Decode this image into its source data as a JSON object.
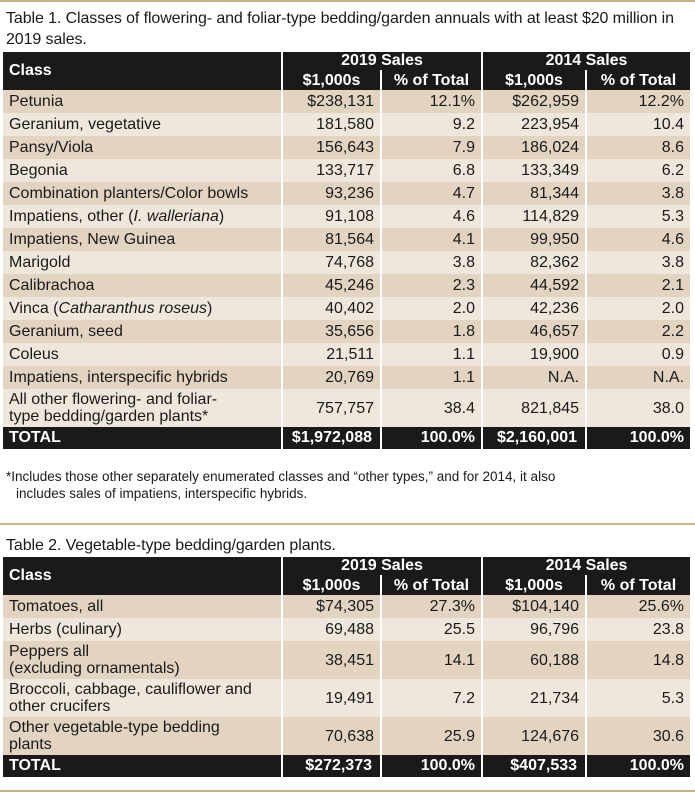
{
  "table1": {
    "caption": "Table 1. Classes of flowering- and foliar-type bedding/garden annuals with at least $20 million in 2019 sales.",
    "header": {
      "class": "Class",
      "group2019": "2019 Sales",
      "group2014": "2014 Sales",
      "unit": "$1,000s",
      "pct": "% of Total"
    },
    "rows": [
      {
        "name": "Petunia",
        "s19": "$238,131",
        "p19": "12.1%",
        "s14": "$262,959",
        "p14": "12.2%"
      },
      {
        "name": "Geranium, vegetative",
        "s19": "181,580",
        "p19": "9.2",
        "s14": "223,954",
        "p14": "10.4"
      },
      {
        "name": "Pansy/Viola",
        "s19": "156,643",
        "p19": "7.9",
        "s14": "186,024",
        "p14": "8.6"
      },
      {
        "name": "Begonia",
        "s19": "133,717",
        "p19": "6.8",
        "s14": "133,349",
        "p14": "6.2"
      },
      {
        "name": "Combination planters/Color bowls",
        "s19": "93,236",
        "p19": "4.7",
        "s14": "81,344",
        "p14": "3.8"
      },
      {
        "name_pre": "Impatiens, other (",
        "name_it": "I. walleriana",
        "name_post": ")",
        "s19": "91,108",
        "p19": "4.6",
        "s14": "114,829",
        "p14": "5.3"
      },
      {
        "name": "Impatiens, New Guinea",
        "s19": "81,564",
        "p19": "4.1",
        "s14": "99,950",
        "p14": "4.6"
      },
      {
        "name": "Marigold",
        "s19": "74,768",
        "p19": "3.8",
        "s14": "82,362",
        "p14": "3.8"
      },
      {
        "name": "Calibrachoa",
        "s19": "45,246",
        "p19": "2.3",
        "s14": "44,592",
        "p14": "2.1"
      },
      {
        "name_pre": "Vinca (",
        "name_it": "Catharanthus roseus",
        "name_post": ")",
        "s19": "40,402",
        "p19": "2.0",
        "s14": "42,236",
        "p14": "2.0"
      },
      {
        "name": "Geranium, seed",
        "s19": "35,656",
        "p19": "1.8",
        "s14": "46,657",
        "p14": "2.2"
      },
      {
        "name": "Coleus",
        "s19": "21,511",
        "p19": "1.1",
        "s14": "19,900",
        "p14": "0.9"
      },
      {
        "name": "Impatiens, interspecific hybrids",
        "s19": "20,769",
        "p19": "1.1",
        "s14": "N.A.",
        "p14": "N.A."
      },
      {
        "name_l1": "All other flowering- and foliar-",
        "name_l2": "type bedding/garden plants*",
        "s19": "757,757",
        "p19": "38.4",
        "s14": "821,845",
        "p14": "38.0"
      }
    ],
    "total": {
      "name": "TOTAL",
      "s19": "$1,972,088",
      "p19": "100.0%",
      "s14": "$2,160,001",
      "p14": "100.0%"
    },
    "footnote_l1": "*Includes those other separately enumerated classes and “other types,” and for 2014, it also",
    "footnote_l2": "includes sales of impatiens, interspecific hybrids."
  },
  "table2": {
    "caption": "Table 2. Vegetable-type bedding/garden plants.",
    "header": {
      "class": "Class",
      "group2019": "2019 Sales",
      "group2014": "2014 Sales",
      "unit": "$1,000s",
      "pct": "% of Total"
    },
    "rows": [
      {
        "name": "Tomatoes, all",
        "s19": "$74,305",
        "p19": "27.3%",
        "s14": "$104,140",
        "p14": "25.6%"
      },
      {
        "name": "Herbs (culinary)",
        "s19": "69,488",
        "p19": "25.5",
        "s14": "96,796",
        "p14": "23.8"
      },
      {
        "name_l1": "Peppers all",
        "name_l2": "(excluding ornamentals)",
        "s19": "38,451",
        "p19": "14.1",
        "s14": "60,188",
        "p14": "14.8"
      },
      {
        "name_l1": "Broccoli, cabbage, cauliflower and",
        "name_l2": "other crucifers",
        "s19": "19,491",
        "p19": "7.2",
        "s14": "21,734",
        "p14": "5.3"
      },
      {
        "name_l1": "Other vegetable-type bedding",
        "name_l2": "plants",
        "s19": "70,638",
        "p19": "25.9",
        "s14": "124,676",
        "p14": "30.6"
      }
    ],
    "total": {
      "name": "TOTAL",
      "s19": "$272,373",
      "p19": "100.0%",
      "s14": "$407,533",
      "p14": "100.0%"
    }
  },
  "colors": {
    "header": "#1c1a18",
    "row_light": "#efe7db",
    "row_dark": "#e2d4c0",
    "rule": "#c8b48a"
  }
}
